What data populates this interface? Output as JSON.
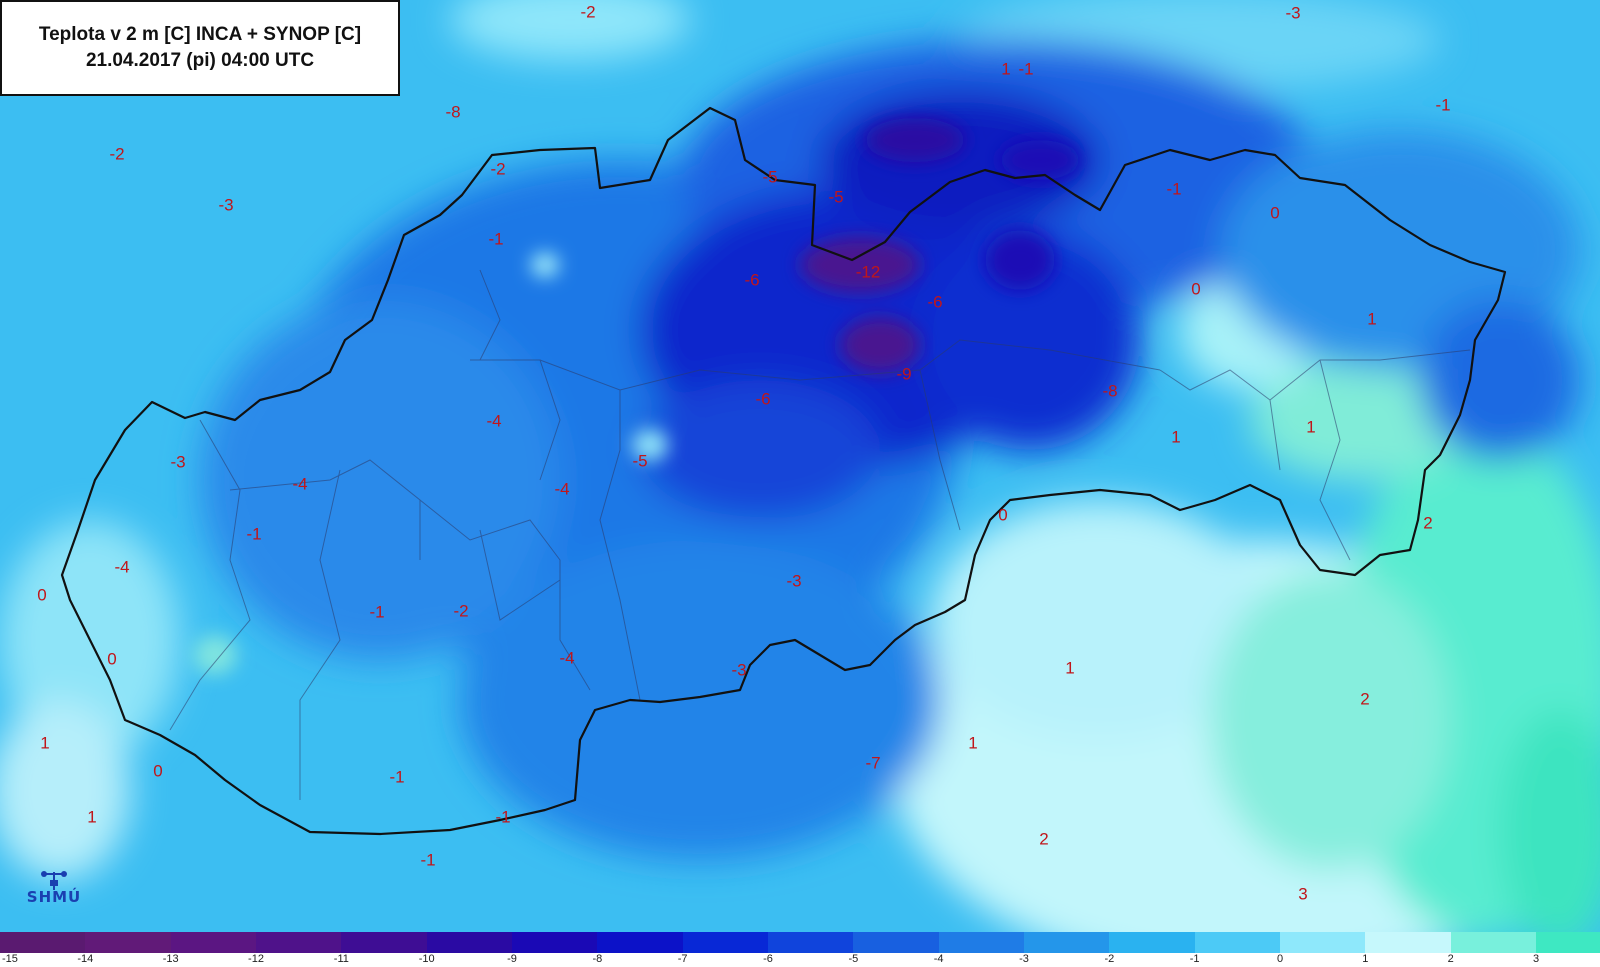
{
  "title": {
    "line1": "Teplota v 2 m [C] INCA + SYNOP [C]",
    "line2": "21.04.2017 (pi) 04:00 UTC"
  },
  "logo": {
    "text": "SHMÚ",
    "icon": "weather-station-icon"
  },
  "legend": {
    "classes": [
      {
        "value": "-15",
        "color": "#5a1a70"
      },
      {
        "value": "-14",
        "color": "#611a78"
      },
      {
        "value": "-13",
        "color": "#5b1682"
      },
      {
        "value": "-12",
        "color": "#4f128a"
      },
      {
        "value": "-11",
        "color": "#3e0d94"
      },
      {
        "value": "-10",
        "color": "#2a0aa3"
      },
      {
        "value": "-9",
        "color": "#1a09b5"
      },
      {
        "value": "-8",
        "color": "#0c12c8"
      },
      {
        "value": "-7",
        "color": "#0828d6"
      },
      {
        "value": "-6",
        "color": "#1044dc"
      },
      {
        "value": "-5",
        "color": "#1860e0"
      },
      {
        "value": "-4",
        "color": "#1f7ce6"
      },
      {
        "value": "-3",
        "color": "#2496ea"
      },
      {
        "value": "-2",
        "color": "#2ab2f0"
      },
      {
        "value": "-1",
        "color": "#4ccaf6"
      },
      {
        "value": "0",
        "color": "#8ee8fb"
      },
      {
        "value": "1",
        "color": "#c6f8fc"
      },
      {
        "value": "2",
        "color": "#78f0dc"
      },
      {
        "value": "3",
        "color": "#3ee8c2"
      }
    ]
  },
  "labels": [
    {
      "t": "-2"
    },
    {
      "t": "-3"
    },
    {
      "t": "-1"
    },
    {
      "t": "-1"
    },
    {
      "t": "-8"
    },
    {
      "t": "-2"
    },
    {
      "t": "-3"
    },
    {
      "t": "-2"
    },
    {
      "t": "-5"
    },
    {
      "t": "-5"
    },
    {
      "t": "-1"
    },
    {
      "t": "0"
    },
    {
      "t": "-1"
    },
    {
      "t": "-6"
    },
    {
      "t": "-12"
    },
    {
      "t": "-6"
    },
    {
      "t": "0"
    },
    {
      "t": "1"
    },
    {
      "t": "1"
    },
    {
      "t": "-9"
    },
    {
      "t": "-8"
    },
    {
      "t": "-6"
    },
    {
      "t": "-4"
    },
    {
      "t": "-5"
    },
    {
      "t": "-3"
    },
    {
      "t": "-4"
    },
    {
      "t": "-4"
    },
    {
      "t": "1"
    },
    {
      "t": "1"
    },
    {
      "t": "0"
    },
    {
      "t": "-1"
    },
    {
      "t": "-4"
    },
    {
      "t": "2"
    },
    {
      "t": "0"
    },
    {
      "t": "-3"
    },
    {
      "t": "-1"
    },
    {
      "t": "-2"
    },
    {
      "t": "0"
    },
    {
      "t": "-4"
    },
    {
      "t": "-3"
    },
    {
      "t": "1"
    },
    {
      "t": "2"
    },
    {
      "t": "1"
    },
    {
      "t": "-7"
    },
    {
      "t": "1"
    },
    {
      "t": "0"
    },
    {
      "t": "-1"
    },
    {
      "t": "1"
    },
    {
      "t": "-1"
    },
    {
      "t": "2"
    },
    {
      "t": "-1"
    },
    {
      "t": "3"
    }
  ]
}
